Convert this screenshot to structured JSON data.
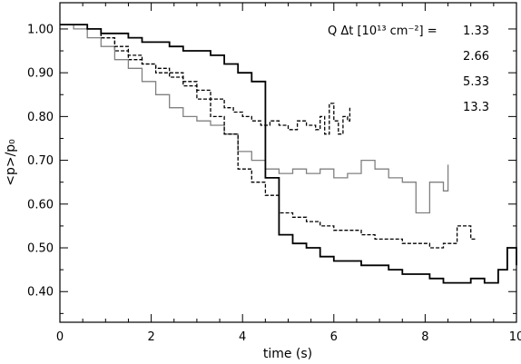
{
  "chart_data": {
    "type": "line",
    "step": true,
    "xlabel": "time (s)",
    "ylabel": "<p>/p₀",
    "xlim": [
      0,
      10
    ],
    "ylim": [
      0.33,
      1.06
    ],
    "xticks": [
      "0",
      "2",
      "4",
      "6",
      "8",
      "10"
    ],
    "yticks": [
      "0.40",
      "0.50",
      "0.60",
      "0.70",
      "0.80",
      "0.90",
      "1.00"
    ],
    "legend": {
      "title": "Q Δt [10¹³ cm⁻²] =",
      "position": "top-right",
      "entries": [
        "1.33",
        "2.66",
        "5.33",
        "13.3"
      ]
    },
    "grid": false,
    "series": [
      {
        "name": "1.33",
        "style": "dashed",
        "color": "#000000",
        "x": [
          0,
          0.3,
          0.6,
          0.9,
          1.2,
          1.5,
          1.8,
          2.1,
          2.4,
          2.7,
          3.0,
          3.3,
          3.6,
          3.8,
          4.0,
          4.2,
          4.4,
          4.6,
          4.8,
          5.0,
          5.2,
          5.4,
          5.6,
          5.7,
          5.8,
          5.9,
          6.0,
          6.1,
          6.2,
          6.3,
          6.35
        ],
        "y": [
          1.01,
          1.01,
          1.0,
          0.98,
          0.95,
          0.93,
          0.92,
          0.91,
          0.9,
          0.88,
          0.86,
          0.84,
          0.82,
          0.81,
          0.8,
          0.79,
          0.78,
          0.79,
          0.78,
          0.77,
          0.79,
          0.78,
          0.77,
          0.8,
          0.76,
          0.83,
          0.79,
          0.76,
          0.8,
          0.79,
          0.82
        ]
      },
      {
        "name": "2.66",
        "style": "solid",
        "color": "#808080",
        "x": [
          0,
          0.3,
          0.6,
          0.9,
          1.2,
          1.5,
          1.8,
          2.1,
          2.4,
          2.7,
          3.0,
          3.3,
          3.6,
          3.9,
          4.2,
          4.5,
          4.8,
          5.1,
          5.4,
          5.7,
          6.0,
          6.3,
          6.6,
          6.9,
          7.2,
          7.5,
          7.8,
          8.1,
          8.4,
          8.5
        ],
        "y": [
          1.01,
          1.0,
          0.98,
          0.96,
          0.93,
          0.91,
          0.88,
          0.85,
          0.82,
          0.8,
          0.79,
          0.78,
          0.76,
          0.72,
          0.7,
          0.68,
          0.67,
          0.68,
          0.67,
          0.68,
          0.66,
          0.67,
          0.7,
          0.68,
          0.66,
          0.65,
          0.58,
          0.65,
          0.63,
          0.69
        ]
      },
      {
        "name": "5.33",
        "style": "dashed",
        "color": "#000000",
        "x": [
          0,
          0.3,
          0.6,
          0.9,
          1.2,
          1.5,
          1.8,
          2.1,
          2.4,
          2.7,
          3.0,
          3.3,
          3.6,
          3.9,
          4.2,
          4.5,
          4.8,
          5.1,
          5.4,
          5.7,
          6.0,
          6.3,
          6.6,
          6.9,
          7.2,
          7.5,
          7.8,
          8.1,
          8.4,
          8.7,
          9.0,
          9.1
        ],
        "y": [
          1.01,
          1.01,
          1.0,
          0.98,
          0.96,
          0.94,
          0.92,
          0.9,
          0.89,
          0.87,
          0.84,
          0.8,
          0.76,
          0.68,
          0.65,
          0.62,
          0.58,
          0.57,
          0.56,
          0.55,
          0.54,
          0.54,
          0.53,
          0.52,
          0.52,
          0.51,
          0.51,
          0.5,
          0.51,
          0.55,
          0.52,
          0.52
        ]
      },
      {
        "name": "13.3",
        "style": "solid",
        "color": "#000000",
        "x": [
          0,
          0.3,
          0.6,
          0.9,
          1.2,
          1.5,
          1.8,
          2.1,
          2.4,
          2.7,
          3.0,
          3.3,
          3.6,
          3.9,
          4.2,
          4.5,
          4.8,
          5.1,
          5.4,
          5.7,
          6.0,
          6.3,
          6.6,
          6.9,
          7.2,
          7.5,
          7.8,
          8.1,
          8.4,
          8.7,
          9.0,
          9.3,
          9.6,
          9.8,
          10.0
        ],
        "y": [
          1.01,
          1.01,
          1.0,
          0.99,
          0.99,
          0.98,
          0.97,
          0.97,
          0.96,
          0.95,
          0.95,
          0.94,
          0.92,
          0.9,
          0.88,
          0.66,
          0.53,
          0.51,
          0.5,
          0.48,
          0.47,
          0.47,
          0.46,
          0.46,
          0.45,
          0.44,
          0.44,
          0.43,
          0.42,
          0.42,
          0.43,
          0.42,
          0.45,
          0.5,
          0.46
        ]
      }
    ]
  }
}
